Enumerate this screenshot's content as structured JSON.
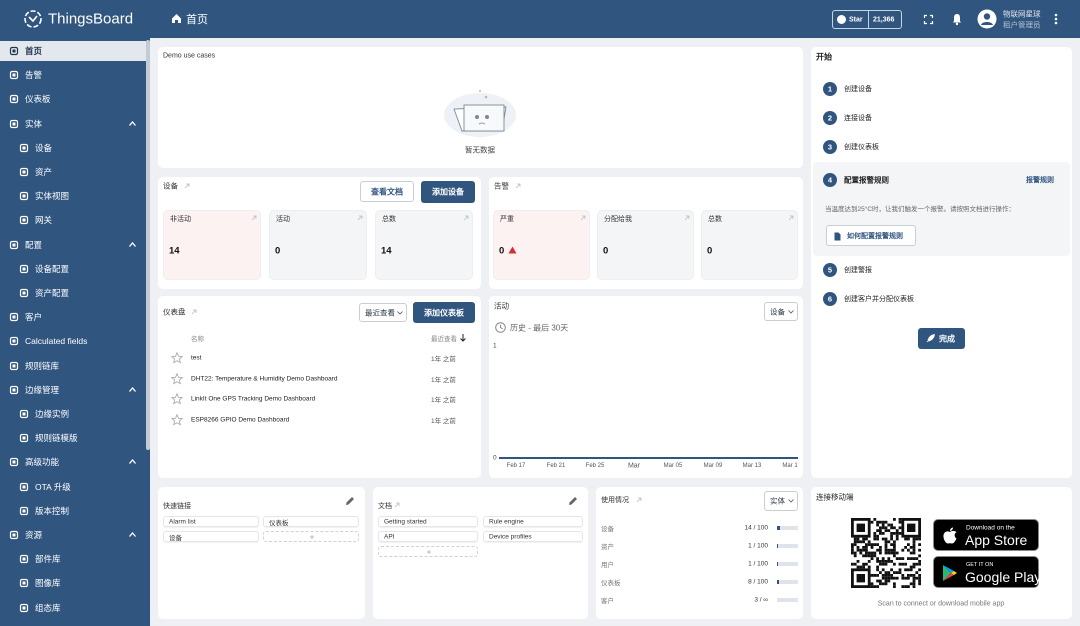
{
  "header": {
    "brand": "ThingsBoard",
    "page_title": "首页",
    "github_star": "Star",
    "github_count": "21,366",
    "user_name": "物联网星球",
    "user_role": "租户管理员"
  },
  "sidebar": [
    {
      "label": "首页"
    },
    {
      "label": "告警"
    },
    {
      "label": "仪表板"
    },
    {
      "label": "实体",
      "children": [
        {
          "label": "设备"
        },
        {
          "label": "资产"
        },
        {
          "label": "实体视图"
        },
        {
          "label": "网关"
        }
      ]
    },
    {
      "label": "配置",
      "children": [
        {
          "label": "设备配置"
        },
        {
          "label": "资产配置"
        }
      ]
    },
    {
      "label": "客户"
    },
    {
      "label": "Calculated fields"
    },
    {
      "label": "规则链库"
    },
    {
      "label": "边缘管理",
      "children": [
        {
          "label": "边缘实例"
        },
        {
          "label": "规则链模版"
        }
      ]
    },
    {
      "label": "高级功能",
      "children": [
        {
          "label": "OTA 升级"
        },
        {
          "label": "版本控制"
        }
      ]
    },
    {
      "label": "资源",
      "children": [
        {
          "label": "部件库"
        },
        {
          "label": "图像库"
        },
        {
          "label": "组态库"
        }
      ]
    }
  ],
  "demo": {
    "title": "Demo use cases",
    "empty": "暂无数据"
  },
  "devices": {
    "title": "设备",
    "docs_button": "查看文档",
    "add_button": "添加设备",
    "tiles": [
      {
        "label": "非活动",
        "value": 14
      },
      {
        "label": "活动",
        "value": 0
      },
      {
        "label": "总数",
        "value": 14
      }
    ]
  },
  "alarms": {
    "title": "告警",
    "tiles": [
      {
        "label": "严重",
        "value": 0
      },
      {
        "label": "分配给我",
        "value": 0
      },
      {
        "label": "总数",
        "value": 0
      }
    ]
  },
  "dashboards": {
    "title": "仪表盘",
    "sort_select": "最近查看",
    "add_button": "添加仪表板",
    "columns": [
      "名称",
      "最近查看"
    ],
    "rows": [
      [
        "test",
        "1年 之前"
      ],
      [
        "DHT22: Temperature & Humidity Demo Dashboard",
        "1年 之前"
      ],
      [
        "LinkIt One GPS Tracking Demo Dashboard",
        "1年 之前"
      ],
      [
        "ESP8266 GPIO Demo Dashboard",
        "1年 之前"
      ]
    ]
  },
  "activity": {
    "title": "活动",
    "select": "设备",
    "period": "历史 - 最后 30天",
    "y_labels": [
      "1",
      "0"
    ],
    "x_labels": [
      "Feb 17",
      "Feb 21",
      "Feb 25",
      "Mar",
      "Mar 05",
      "Mar 09",
      "Mar 13",
      "Mar 1"
    ]
  },
  "getting_started": {
    "title": "开始",
    "steps": [
      {
        "number": 1,
        "label": "创建设备"
      },
      {
        "number": 2,
        "label": "连接设备"
      },
      {
        "number": 3,
        "label": "创建仪表板"
      },
      {
        "number": 4,
        "label": "配置报警规则",
        "link": "报警规则",
        "description": "当温度达到25°C时，让我们触发一个报警。请按照文档进行操作：",
        "button": "如何配置报警规则"
      },
      {
        "number": 5,
        "label": "创建警报"
      },
      {
        "number": 6,
        "label": "创建客户并分配仪表板"
      }
    ],
    "done_button": "完成"
  },
  "quick_links": {
    "title": "快速链接",
    "links": [
      "Alarm list",
      "仪表板",
      "设备"
    ]
  },
  "docs": {
    "title": "文档",
    "links": [
      "Getting started",
      "Rule engine",
      "API",
      "Device profiles"
    ]
  },
  "usage": {
    "title": "使用情况",
    "select": "实体",
    "rows": [
      {
        "label": "设备",
        "value": "14 / 100"
      },
      {
        "label": "资产",
        "value": "1 / 100"
      },
      {
        "label": "用户",
        "value": "1 / 100"
      },
      {
        "label": "仪表板",
        "value": "8 / 100"
      },
      {
        "label": "客户",
        "value": "3 / ∞"
      }
    ]
  },
  "mobile": {
    "title": "连接移动端",
    "app_store_small": "Download on the",
    "app_store": "App Store",
    "google_play_small": "GET IT ON",
    "google_play": "Google Play",
    "caption": "Scan to connect or download mobile app"
  }
}
